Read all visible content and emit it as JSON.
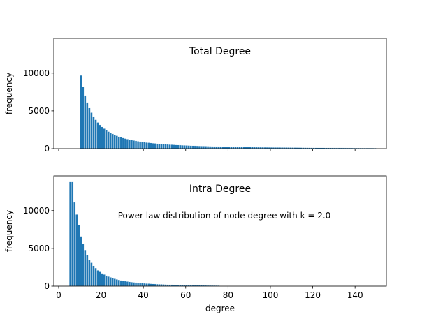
{
  "chart_data": [
    {
      "type": "histogram",
      "title": "Total Degree",
      "ylabel": "frequency",
      "color": "#1f77b4",
      "xlim": [
        -2.3,
        154.8
      ],
      "ylim": [
        0,
        14600
      ],
      "yticks": [
        0,
        5000,
        10000
      ],
      "bins": [
        10,
        11,
        12,
        13,
        14,
        15,
        16,
        17,
        18,
        19,
        20,
        21,
        22,
        23,
        24,
        25,
        26,
        27,
        28,
        29,
        30,
        31,
        32,
        33,
        34,
        35,
        36,
        37,
        38,
        39,
        40,
        41,
        42,
        43,
        44,
        45,
        46,
        47,
        48,
        49,
        50,
        51,
        52,
        53,
        54,
        55,
        56,
        57,
        58,
        59,
        60,
        61,
        62,
        63,
        64,
        65,
        66,
        67,
        68,
        69,
        70,
        71,
        72,
        73,
        74,
        75,
        76,
        77,
        78,
        79,
        80,
        81,
        82,
        83,
        84,
        85,
        86,
        87,
        88,
        89,
        90,
        91,
        92,
        93,
        94,
        95,
        96,
        97,
        98,
        99,
        100,
        101,
        102,
        103,
        104,
        105,
        106,
        107,
        108,
        109,
        110,
        111,
        112,
        113,
        114,
        115,
        116,
        117,
        118,
        119,
        120,
        121,
        122,
        123,
        124,
        125,
        126,
        127,
        128,
        129,
        130,
        131,
        132,
        133,
        134,
        135,
        136,
        137,
        138,
        139,
        140,
        141,
        142,
        143,
        144,
        145,
        146,
        147,
        148,
        149,
        150
      ],
      "values": [
        9700,
        8210,
        7050,
        6130,
        5380,
        4770,
        4260,
        3830,
        3470,
        3150,
        2880,
        2650,
        2440,
        2260,
        2100,
        1950,
        1820,
        1710,
        1600,
        1505,
        1420,
        1340,
        1270,
        1200,
        1140,
        1080,
        1030,
        980,
        940,
        895,
        857,
        820,
        790,
        755,
        725,
        700,
        672,
        648,
        625,
        603,
        583,
        563,
        545,
        528,
        511,
        495,
        480,
        466,
        452,
        439,
        427,
        415,
        403,
        392,
        381,
        371,
        361,
        352,
        343,
        334,
        325,
        317,
        309,
        302,
        295,
        288,
        281,
        274,
        268,
        262,
        256,
        250,
        245,
        240,
        235,
        230,
        225,
        220,
        215,
        211,
        207,
        203,
        199,
        195,
        191,
        187,
        184,
        180,
        177,
        174,
        171,
        168,
        165,
        162,
        159,
        156,
        154,
        151,
        149,
        146,
        144,
        141,
        139,
        137,
        135,
        133,
        131,
        129,
        127,
        125,
        123,
        121,
        119,
        117,
        115,
        114,
        112,
        110,
        109,
        107,
        106,
        104,
        103,
        101,
        100,
        98,
        97,
        96,
        94,
        93,
        92,
        91,
        89,
        88,
        87,
        86,
        85,
        84,
        83,
        82
      ]
    },
    {
      "type": "histogram",
      "title": "Intra Degree",
      "ylabel": "frequency",
      "xlabel": "degree",
      "color": "#1f77b4",
      "annotation": "Power law distribution of node degree with k = 2.0",
      "xlim": [
        -2.3,
        154.8
      ],
      "ylim": [
        0,
        14600
      ],
      "yticks": [
        0,
        5000,
        10000
      ],
      "xticks": [
        0,
        20,
        40,
        60,
        80,
        100,
        120,
        140
      ],
      "bins": [
        5,
        6,
        7,
        8,
        9,
        10,
        11,
        12,
        13,
        14,
        15,
        16,
        17,
        18,
        19,
        20,
        21,
        22,
        23,
        24,
        25,
        26,
        27,
        28,
        29,
        30,
        31,
        32,
        33,
        34,
        35,
        36,
        37,
        38,
        39,
        40,
        41,
        42,
        43,
        44,
        45,
        46,
        47,
        48,
        49,
        50,
        51,
        52,
        53,
        54,
        55,
        56,
        57,
        58,
        59,
        60,
        61,
        62,
        63,
        64,
        65,
        66,
        67,
        68,
        69,
        70,
        71,
        72,
        73,
        74,
        75,
        76
      ],
      "values": [
        13800,
        13800,
        11100,
        9500,
        8100,
        6600,
        5600,
        4800,
        4100,
        3500,
        3100,
        2700,
        2400,
        2100,
        1900,
        1700,
        1550,
        1400,
        1280,
        1170,
        1070,
        980,
        900,
        830,
        770,
        710,
        660,
        615,
        575,
        540,
        505,
        475,
        447,
        421,
        397,
        375,
        355,
        336,
        318,
        302,
        287,
        272,
        259,
        247,
        235,
        224,
        214,
        204,
        195,
        187,
        179,
        171,
        164,
        157,
        151,
        145,
        139,
        134,
        129,
        124,
        119,
        115,
        111,
        107,
        103,
        100,
        96,
        93,
        90,
        87,
        84
      ]
    }
  ]
}
